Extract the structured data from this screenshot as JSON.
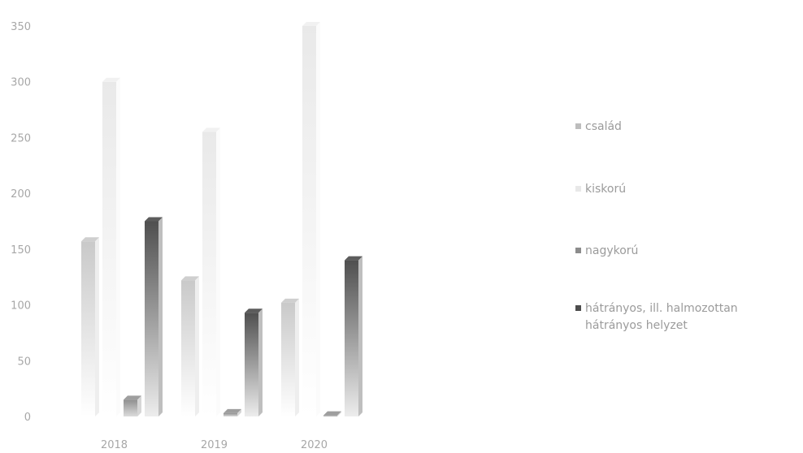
{
  "chart_data": {
    "type": "bar",
    "categories": [
      "2018",
      "2019",
      "2020"
    ],
    "series": [
      {
        "name": "család",
        "values": [
          157,
          122,
          102
        ],
        "color": "#cfcfcf"
      },
      {
        "name": "kiskorú",
        "values": [
          300,
          255,
          350
        ],
        "color": "#f1f1f1"
      },
      {
        "name": "nagykorú",
        "values": [
          15,
          3,
          1
        ],
        "color": "#9e9e9e"
      },
      {
        "name": "hátrányos, ill. halmozottan hátrányos helyzet",
        "values": [
          175,
          93,
          140
        ],
        "color": "#5c5c5c"
      }
    ],
    "ylim": [
      0,
      350
    ],
    "yticks": [
      "0",
      "50",
      "100",
      "150",
      "200",
      "250",
      "300",
      "350"
    ],
    "grid": false,
    "legend": "right"
  },
  "legend": {
    "entries": [
      {
        "lines": [
          "család"
        ]
      },
      {
        "lines": [
          "kiskorú"
        ]
      },
      {
        "lines": [
          "nagykorú"
        ]
      },
      {
        "lines": [
          "hátrányos, ill. halmozottan",
          "hátrányos helyzet"
        ]
      }
    ]
  }
}
